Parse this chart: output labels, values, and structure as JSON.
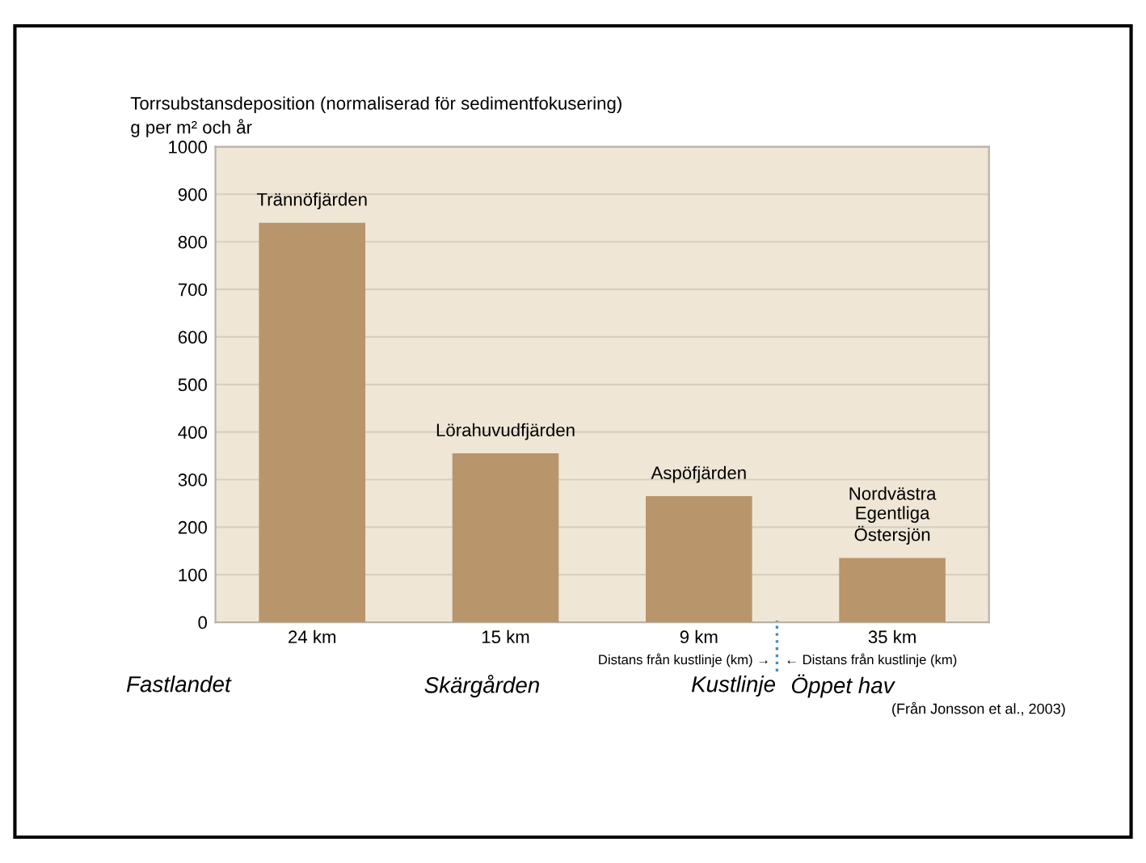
{
  "chart_data": {
    "type": "bar",
    "ylabel": "Torrsubstansdeposition (normaliserad för sedimentfokusering)\ng per m² och år",
    "categories": [
      "24 km",
      "15 km",
      "9 km",
      "35 km"
    ],
    "values": [
      840,
      355,
      265,
      135
    ],
    "color": "#b8956a",
    "ylim": [
      0,
      1000
    ],
    "yticks": [
      0,
      100,
      200,
      300,
      400,
      500,
      600,
      700,
      800,
      900,
      1000
    ],
    "grid": "y",
    "annotations": [
      {
        "text": "Trännöfjärden",
        "x": "24 km",
        "y": 840
      },
      {
        "text": "Lörahuvudfjärden",
        "x": "15 km",
        "y": 355
      },
      {
        "text": "Aspöfjärden",
        "x": "9 km",
        "y": 265
      },
      {
        "text": "Nordvästra\nEgentliga\nÖstersjön",
        "x": "35 km",
        "y": 135
      },
      "Distans från kustlinje (km) →",
      "← Distans från kustlinje (km)",
      "Fastlandet",
      "Skärgården",
      "Kustlinje",
      "Öppet hav",
      "(Från Jonsson et al., 2003)"
    ]
  }
}
